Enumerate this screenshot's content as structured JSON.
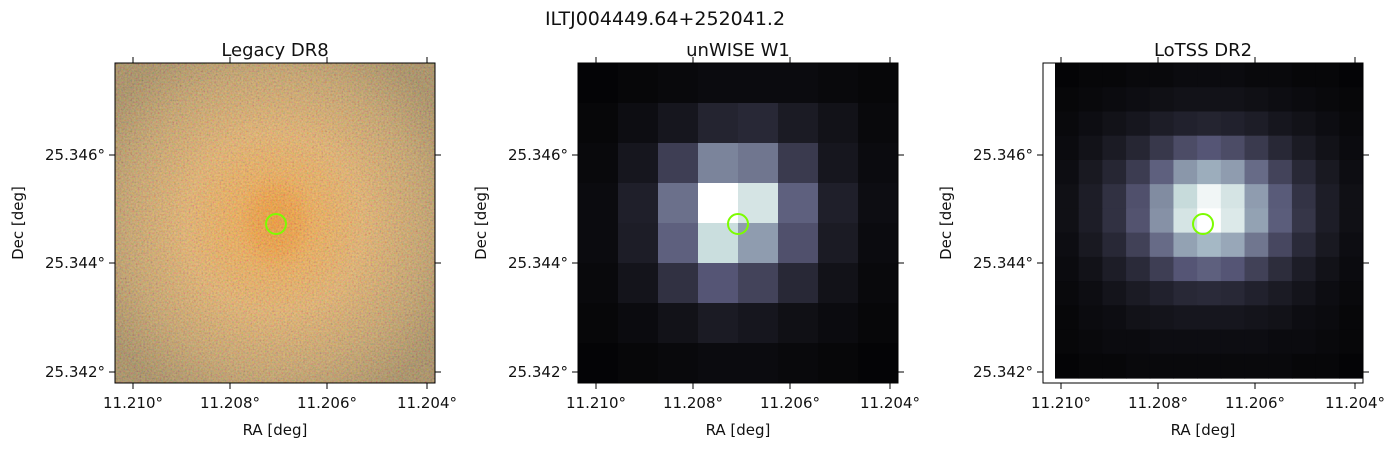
{
  "title": "ILTJ004449.64+252041.2",
  "chart_data": [
    {
      "type": "heatmap",
      "title": "Legacy DR8",
      "xlabel": "RA [deg]",
      "ylabel": "Dec [deg]",
      "xticks": [
        "11.210°",
        "11.208°",
        "11.206°",
        "11.204°"
      ],
      "yticks": [
        "25.346°",
        "25.344°",
        "25.342°"
      ],
      "source_ra": 11.20706,
      "source_dec": 25.3447,
      "colormap": "optical-rgb",
      "marker_color": "#7cfc00"
    },
    {
      "type": "heatmap",
      "title": "unWISE W1",
      "xlabel": "RA [deg]",
      "ylabel": "Dec [deg]",
      "xticks": [
        "11.210°",
        "11.208°",
        "11.206°",
        "11.204°"
      ],
      "yticks": [
        "25.346°",
        "25.344°",
        "25.342°"
      ],
      "source_ra": 11.20706,
      "source_dec": 25.3447,
      "colormap": "bone",
      "marker_color": "#7cfc00",
      "pixel_grid": [
        [
          0.02,
          0.03,
          0.04,
          0.05,
          0.05,
          0.05,
          0.04,
          0.03
        ],
        [
          0.03,
          0.06,
          0.1,
          0.16,
          0.18,
          0.12,
          0.08,
          0.04
        ],
        [
          0.04,
          0.1,
          0.28,
          0.55,
          0.5,
          0.26,
          0.1,
          0.05
        ],
        [
          0.05,
          0.14,
          0.48,
          1.0,
          0.88,
          0.42,
          0.14,
          0.06
        ],
        [
          0.05,
          0.13,
          0.42,
          0.85,
          0.64,
          0.36,
          0.12,
          0.05
        ],
        [
          0.04,
          0.09,
          0.22,
          0.38,
          0.3,
          0.18,
          0.08,
          0.04
        ],
        [
          0.03,
          0.05,
          0.08,
          0.12,
          0.1,
          0.07,
          0.05,
          0.03
        ],
        [
          0.02,
          0.03,
          0.04,
          0.05,
          0.05,
          0.04,
          0.03,
          0.02
        ]
      ]
    },
    {
      "type": "heatmap",
      "title": "LoTSS DR2",
      "xlabel": "RA [deg]",
      "ylabel": "Dec [deg]",
      "xticks": [
        "11.210°",
        "11.208°",
        "11.206°",
        "11.204°"
      ],
      "yticks": [
        "25.346°",
        "25.344°",
        "25.342°"
      ],
      "source_ra": 11.20706,
      "source_dec": 25.3447,
      "colormap": "bone",
      "marker_color": "#7cfc00",
      "pixel_grid": [
        [
          0.02,
          0.03,
          0.03,
          0.04,
          0.04,
          0.05,
          0.05,
          0.05,
          0.04,
          0.04,
          0.03,
          0.03,
          0.02
        ],
        [
          0.03,
          0.04,
          0.05,
          0.06,
          0.07,
          0.08,
          0.08,
          0.08,
          0.07,
          0.06,
          0.05,
          0.04,
          0.03
        ],
        [
          0.04,
          0.06,
          0.08,
          0.1,
          0.13,
          0.15,
          0.16,
          0.15,
          0.13,
          0.1,
          0.08,
          0.06,
          0.04
        ],
        [
          0.05,
          0.08,
          0.12,
          0.17,
          0.25,
          0.34,
          0.38,
          0.34,
          0.26,
          0.18,
          0.12,
          0.08,
          0.05
        ],
        [
          0.06,
          0.11,
          0.17,
          0.27,
          0.42,
          0.62,
          0.7,
          0.64,
          0.46,
          0.3,
          0.18,
          0.11,
          0.06
        ],
        [
          0.07,
          0.13,
          0.22,
          0.36,
          0.58,
          0.84,
          0.96,
          0.88,
          0.64,
          0.4,
          0.23,
          0.13,
          0.07
        ],
        [
          0.07,
          0.13,
          0.22,
          0.37,
          0.6,
          0.88,
          1.0,
          0.9,
          0.66,
          0.41,
          0.24,
          0.13,
          0.07
        ],
        [
          0.06,
          0.11,
          0.18,
          0.29,
          0.46,
          0.66,
          0.74,
          0.68,
          0.5,
          0.32,
          0.19,
          0.11,
          0.06
        ],
        [
          0.05,
          0.08,
          0.13,
          0.19,
          0.28,
          0.38,
          0.42,
          0.38,
          0.29,
          0.2,
          0.13,
          0.08,
          0.05
        ],
        [
          0.04,
          0.06,
          0.09,
          0.12,
          0.15,
          0.18,
          0.19,
          0.18,
          0.15,
          0.12,
          0.09,
          0.06,
          0.04
        ],
        [
          0.03,
          0.05,
          0.06,
          0.08,
          0.09,
          0.1,
          0.1,
          0.1,
          0.09,
          0.08,
          0.06,
          0.05,
          0.03
        ],
        [
          0.03,
          0.04,
          0.05,
          0.05,
          0.06,
          0.06,
          0.06,
          0.06,
          0.06,
          0.05,
          0.05,
          0.04,
          0.03
        ],
        [
          0.02,
          0.03,
          0.03,
          0.04,
          0.04,
          0.04,
          0.04,
          0.04,
          0.04,
          0.04,
          0.03,
          0.03,
          0.02
        ]
      ]
    }
  ]
}
